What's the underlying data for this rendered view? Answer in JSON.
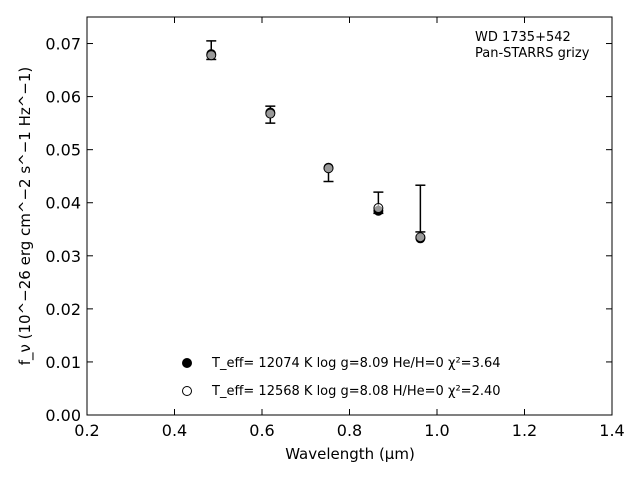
{
  "chart_data": {
    "type": "scatter",
    "annotation": [
      "WD 1735+542",
      "Pan-STARRS grizy"
    ],
    "xlabel": "Wavelength (μm)",
    "ylabel": "f_ν (10^−26 erg cm^−2 s^−1 Hz^−1)",
    "xlim": [
      0.2,
      1.4
    ],
    "ylim": [
      0.0,
      0.075
    ],
    "xticks": [
      0.2,
      0.4,
      0.6,
      0.8,
      1.0,
      1.2,
      1.4
    ],
    "xtick_labels": [
      "0.2",
      "0.4",
      "0.6",
      "0.8",
      "1.0",
      "1.2",
      "1.4"
    ],
    "yticks": [
      0.0,
      0.01,
      0.02,
      0.03,
      0.04,
      0.05,
      0.06,
      0.07
    ],
    "ytick_labels": [
      "0.00",
      "0.01",
      "0.02",
      "0.03",
      "0.04",
      "0.05",
      "0.06",
      "0.07"
    ],
    "grid": false,
    "legend_position": "bottom-center",
    "observed": {
      "x": [
        0.484,
        0.619,
        0.752,
        0.866,
        0.962
      ],
      "y": [
        0.0685,
        0.0565,
        0.0455,
        0.038,
        0.0345
      ],
      "yerr_low": [
        0.0015,
        0.0015,
        0.0015,
        0.0,
        0.0
      ],
      "yerr_high": [
        0.002,
        0.0017,
        0.001,
        0.004,
        0.0088
      ]
    },
    "series": [
      {
        "name": "T_eff= 12074 K  log g=8.09  He/H=0  χ²=3.64",
        "marker": "filled-circle",
        "x": [
          0.484,
          0.619,
          0.752,
          0.866,
          0.962
        ],
        "y": [
          0.068,
          0.057,
          0.0466,
          0.0385,
          0.0333
        ]
      },
      {
        "name": "T_eff= 12568 K  log g=8.08  H/He=0  χ²=2.40",
        "marker": "open-circle",
        "x": [
          0.484,
          0.619,
          0.752,
          0.866,
          0.962
        ],
        "y": [
          0.0678,
          0.0568,
          0.0465,
          0.039,
          0.0335
        ]
      }
    ]
  }
}
